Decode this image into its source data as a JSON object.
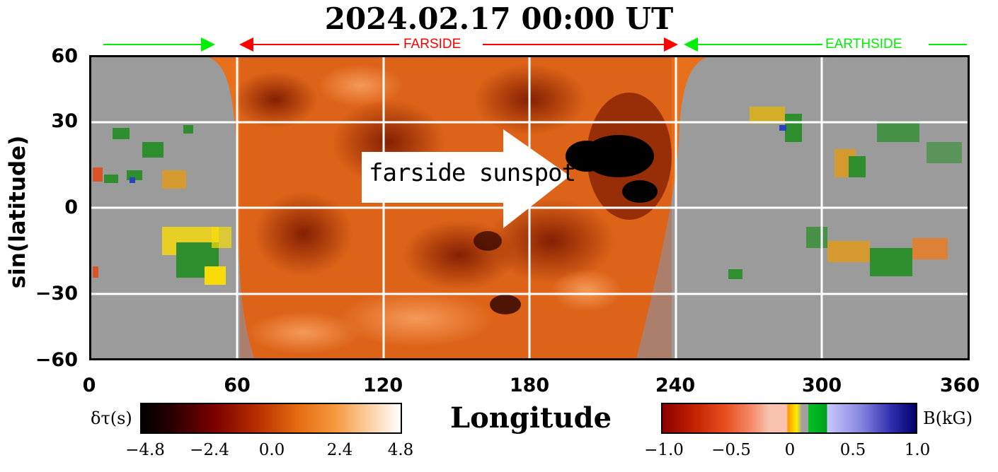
{
  "title": "2024.02.17 00:00 UT",
  "axes": {
    "ylabel": "sin(latitude)",
    "xlabel": "Longitude",
    "y_ticks": [
      "60",
      "30",
      "0",
      "−30",
      "−60"
    ],
    "x_ticks": [
      "0",
      "60",
      "120",
      "180",
      "240",
      "300",
      "360"
    ],
    "x_range": [
      0,
      360
    ],
    "y_range": [
      -60,
      60
    ],
    "grid": true,
    "grid_color": "#ffffff"
  },
  "regions": {
    "farside_label": "FARSIDE",
    "earthside_label": "EARTHSIDE",
    "farside_color": "#ff0000",
    "earthside_color": "#00ee00",
    "farside_lon_range": [
      62,
      240
    ],
    "earthside_arrow_left_lon_range": [
      5,
      50
    ],
    "earthside_arrow_right_lon_range": [
      243,
      358
    ]
  },
  "annotation": {
    "text": "farside sunspot",
    "arrow_color": "#ffffff"
  },
  "colorbars": {
    "farside": {
      "label": "δτ(s)",
      "ticks": [
        "−4.8",
        "−2.4",
        "0.0",
        "2.4",
        "4.8"
      ]
    },
    "magnetic": {
      "label": "B(kG)",
      "ticks": [
        "−1.0",
        "−0.5",
        "0",
        "0.5",
        "1.0"
      ]
    }
  }
}
